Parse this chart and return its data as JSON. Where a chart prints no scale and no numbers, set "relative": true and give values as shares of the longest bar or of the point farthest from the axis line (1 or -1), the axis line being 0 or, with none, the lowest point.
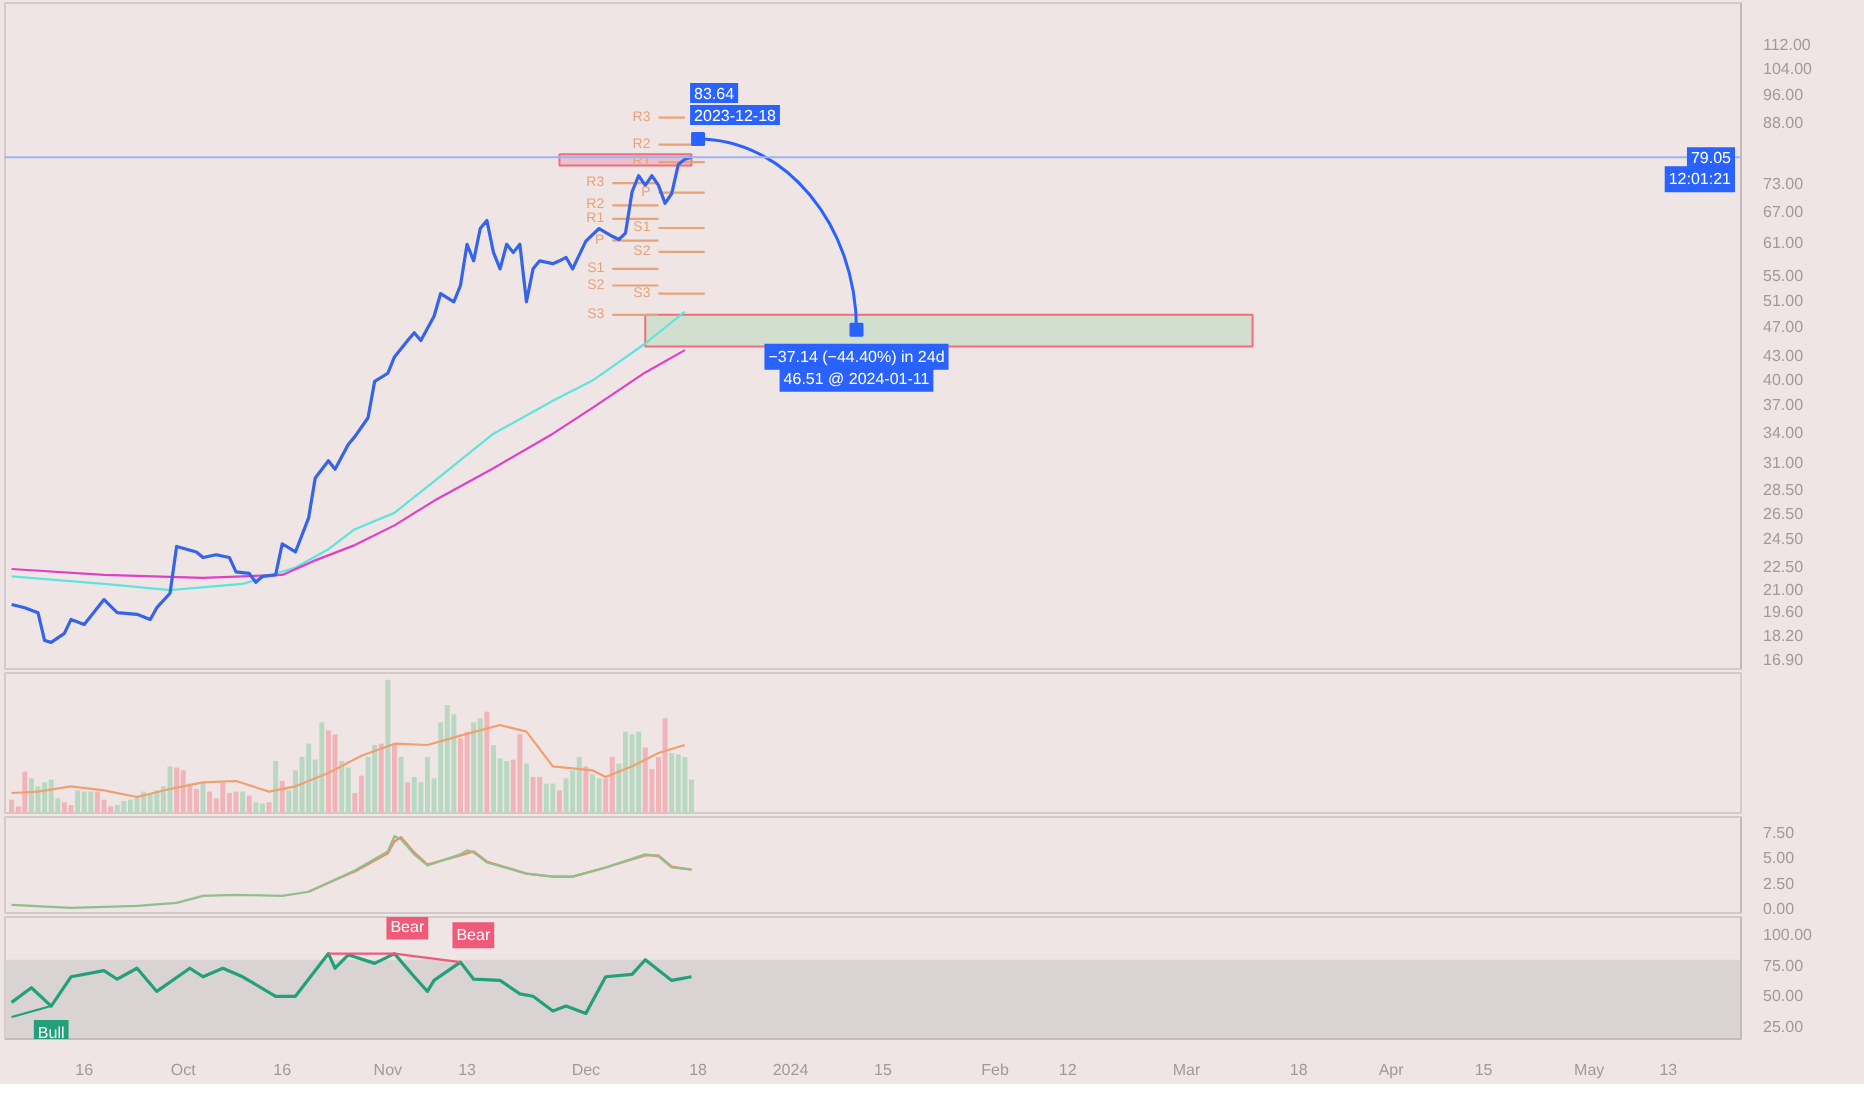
{
  "chart_data": [
    {
      "type": "line",
      "log": true,
      "xlim": [
        "2023-09-04",
        "2024-05-24"
      ],
      "ylim": [
        16.4,
        127
      ],
      "tick_labels": "y",
      "yticks": [
        {
          "value": 16.9,
          "label": "16.90"
        },
        {
          "value": 18.2,
          "label": "18.20"
        },
        {
          "value": 19.6,
          "label": "19.60"
        },
        {
          "value": 21,
          "label": "21.00"
        },
        {
          "value": 22.5,
          "label": "22.50"
        },
        {
          "value": 24.5,
          "label": "24.50"
        },
        {
          "value": 26.5,
          "label": "26.50"
        },
        {
          "value": 28.5,
          "label": "28.50"
        },
        {
          "value": 31,
          "label": "31.00"
        },
        {
          "value": 34,
          "label": "34.00"
        },
        {
          "value": 37,
          "label": "37.00"
        },
        {
          "value": 40,
          "label": "40.00"
        },
        {
          "value": 43,
          "label": "43.00"
        },
        {
          "value": 47,
          "label": "47.00"
        },
        {
          "value": 51,
          "label": "51.00"
        },
        {
          "value": 55,
          "label": "55.00"
        },
        {
          "value": 61,
          "label": "61.00"
        },
        {
          "value": 67,
          "label": "67.00"
        },
        {
          "value": 73,
          "label": "73.00"
        },
        {
          "value": 88,
          "label": "88.00"
        },
        {
          "value": 96,
          "label": "96.00"
        },
        {
          "value": 104,
          "label": "104.00"
        },
        {
          "value": 112,
          "label": "112.00"
        }
      ],
      "series": [
        {
          "type": "line",
          "color": "#c9dcc6",
          "x": [
            "2023-12-10",
            "2024-03-11"
          ],
          "values": [
            null,
            null
          ],
          "lower": [
            44.2,
            44.2
          ],
          "upper": [
            48.7,
            48.7
          ]
        },
        {
          "type": "line",
          "color": "#eab4c6",
          "x": [
            "2023-11-27",
            "2023-12-17"
          ],
          "values": [
            null,
            null
          ],
          "lower": [
            77.1,
            77.1
          ],
          "upper": [
            79.8,
            79.8
          ]
        },
        {
          "type": "line",
          "color": "#5fe3dd",
          "x": [
            "2023-09-05",
            "2023-09-19",
            "2023-09-29",
            "2023-10-10",
            "2023-10-18",
            "2023-10-23",
            "2023-10-27",
            "2023-11-02",
            "2023-11-08",
            "2023-11-17",
            "2023-11-26",
            "2023-12-02",
            "2023-12-10",
            "2023-12-16"
          ],
          "values": [
            21.8,
            21.3,
            20.9,
            21.3,
            22.4,
            23.7,
            25.2,
            26.5,
            29.2,
            33.8,
            37.4,
            39.8,
            44.6,
            49.2
          ]
        },
        {
          "type": "line",
          "color": "#e040c8",
          "x": [
            "2023-09-05",
            "2023-09-19",
            "2023-10-04",
            "2023-10-16",
            "2023-10-21",
            "2023-10-27",
            "2023-11-02",
            "2023-11-08",
            "2023-11-17",
            "2023-11-26",
            "2023-12-02",
            "2023-12-10",
            "2023-12-16"
          ],
          "values": [
            22.3,
            21.9,
            21.7,
            21.9,
            22.9,
            24.0,
            25.5,
            27.5,
            30.4,
            33.8,
            36.6,
            40.8,
            43.7
          ]
        },
        {
          "type": "line",
          "name": "R3",
          "color": "#e8a27a",
          "x": [
            "2023-12-05",
            "2023-12-12"
          ],
          "values": [
            73.0,
            73.0
          ]
        },
        {
          "type": "line",
          "name": "R2",
          "color": "#e8a27a",
          "x": [
            "2023-12-05",
            "2023-12-12"
          ],
          "values": [
            68.2,
            68.2
          ]
        },
        {
          "type": "line",
          "name": "R1",
          "color": "#e8a27a",
          "x": [
            "2023-12-05",
            "2023-12-12"
          ],
          "values": [
            65.4,
            65.4
          ]
        },
        {
          "type": "line",
          "name": "P",
          "color": "#e8a27a",
          "x": [
            "2023-12-05",
            "2023-12-12"
          ],
          "values": [
            61.2,
            61.2
          ]
        },
        {
          "type": "line",
          "name": "S1",
          "color": "#e8a27a",
          "x": [
            "2023-12-05",
            "2023-12-12"
          ],
          "values": [
            56.1,
            56.1
          ]
        },
        {
          "type": "line",
          "name": "S2",
          "color": "#e8a27a",
          "x": [
            "2023-12-05",
            "2023-12-12"
          ],
          "values": [
            53.3,
            53.3
          ]
        },
        {
          "type": "line",
          "name": "S3",
          "color": "#e8a27a",
          "x": [
            "2023-12-05",
            "2023-12-12"
          ],
          "values": [
            48.7,
            48.7
          ]
        },
        {
          "type": "line",
          "name": "R3",
          "color": "#e8a27a",
          "x": [
            "2023-12-12",
            "2023-12-16"
          ],
          "values": [
            89.3,
            89.3
          ]
        },
        {
          "type": "line",
          "name": "R2",
          "color": "#e8a27a",
          "x": [
            "2023-12-12",
            "2023-12-19"
          ],
          "values": [
            82.2,
            82.2
          ]
        },
        {
          "type": "line",
          "name": "R1",
          "color": "#e8a27a",
          "x": [
            "2023-12-12",
            "2023-12-19"
          ],
          "values": [
            77.9,
            77.9
          ]
        },
        {
          "type": "line",
          "name": "P",
          "color": "#e8a27a",
          "x": [
            "2023-12-12",
            "2023-12-19"
          ],
          "values": [
            70.9,
            70.9
          ]
        },
        {
          "type": "line",
          "name": "S1",
          "color": "#e8a27a",
          "x": [
            "2023-12-12",
            "2023-12-19"
          ],
          "values": [
            63.6,
            63.6
          ]
        },
        {
          "type": "line",
          "name": "S2",
          "color": "#e8a27a",
          "x": [
            "2023-12-12",
            "2023-12-19"
          ],
          "values": [
            59.1,
            59.1
          ]
        },
        {
          "type": "line",
          "name": "S3",
          "color": "#e8a27a",
          "x": [
            "2023-12-12",
            "2023-12-19"
          ],
          "values": [
            52.0,
            52.0
          ]
        },
        {
          "type": "line",
          "color": "#3563e9",
          "x": [
            "2023-09-05",
            "2023-09-07",
            "2023-09-09",
            "2023-09-10",
            "2023-09-11",
            "2023-09-13",
            "2023-09-14",
            "2023-09-16",
            "2023-09-19",
            "2023-09-21",
            "2023-09-24",
            "2023-09-26",
            "2023-09-27",
            "2023-09-29",
            "2023-09-30",
            "2023-10-03",
            "2023-10-04",
            "2023-10-06",
            "2023-10-08",
            "2023-10-09",
            "2023-10-11",
            "2023-10-12",
            "2023-10-13",
            "2023-10-15",
            "2023-10-16",
            "2023-10-18",
            "2023-10-20",
            "2023-10-21",
            "2023-10-23",
            "2023-10-24",
            "2023-10-26",
            "2023-10-27",
            "2023-10-29",
            "2023-10-30",
            "2023-11-01",
            "2023-11-02",
            "2023-11-04",
            "2023-11-05",
            "2023-11-06",
            "2023-11-08",
            "2023-11-09",
            "2023-11-11",
            "2023-11-12",
            "2023-11-13",
            "2023-11-14",
            "2023-11-15",
            "2023-11-16",
            "2023-11-17",
            "2023-11-18",
            "2023-11-19",
            "2023-11-20",
            "2023-11-21",
            "2023-11-22",
            "2023-11-23",
            "2023-11-24",
            "2023-11-26",
            "2023-11-27",
            "2023-11-28",
            "2023-11-29",
            "2023-12-01",
            "2023-12-03",
            "2023-12-05",
            "2023-12-06",
            "2023-12-07",
            "2023-12-08",
            "2023-12-09",
            "2023-12-10",
            "2023-12-11",
            "2023-12-12",
            "2023-12-13",
            "2023-12-14",
            "2023-12-15",
            "2023-12-16",
            "2023-12-17"
          ],
          "values": [
            20.0,
            19.8,
            19.5,
            17.9,
            17.8,
            18.3,
            19.1,
            18.8,
            20.3,
            19.5,
            19.4,
            19.1,
            19.8,
            20.7,
            23.9,
            23.5,
            23.1,
            23.3,
            23.1,
            22.1,
            22.0,
            21.4,
            21.8,
            21.9,
            24.1,
            23.5,
            26.1,
            29.5,
            31.1,
            30.3,
            32.7,
            33.5,
            35.5,
            39.7,
            40.7,
            42.8,
            45.0,
            46.1,
            45.0,
            48.5,
            52.0,
            50.7,
            53.3,
            60.5,
            57.5,
            63.5,
            65.1,
            59.0,
            56.1,
            60.5,
            59.0,
            60.5,
            50.7,
            56.1,
            57.5,
            57.0,
            57.5,
            58.1,
            56.1,
            61.1,
            63.5,
            62.0,
            61.4,
            62.6,
            71.1,
            74.7,
            72.5,
            74.7,
            72.5,
            68.6,
            70.7,
            77.3,
            78.6,
            79.05
          ]
        },
        {
          "type": "line",
          "marker": "square",
          "color": "#2962ff",
          "x": [
            "2023-12-18",
            "2024-01-11"
          ],
          "values": [
            83.64,
            46.51
          ]
        }
      ],
      "ref_lines": [
        {
          "axis": "y",
          "value": 79.05,
          "label": "79.05",
          "color": "#9db3f2"
        }
      ],
      "annotations": [
        {
          "text": "83.64",
          "x": "2023-12-18",
          "y": 83.64
        },
        {
          "text": "2023-12-18",
          "x": "2023-12-18",
          "y": 83.64
        },
        {
          "text": "−37.14 (−44.40%) in 24d",
          "x": "2024-01-11",
          "y": 46.51
        },
        {
          "text": "46.51 @ 2024-01-11",
          "x": "2024-01-11",
          "y": 46.51
        },
        "12:01:21"
      ]
    },
    {
      "type": "bar",
      "relative": true,
      "tick_labels": false,
      "xlim": [
        "2023-09-04",
        "2024-05-24"
      ],
      "x": [
        "2023-09-05",
        "2023-09-06",
        "2023-09-07",
        "2023-09-08",
        "2023-09-09",
        "2023-09-10",
        "2023-09-11",
        "2023-09-12",
        "2023-09-13",
        "2023-09-14",
        "2023-09-15",
        "2023-09-16",
        "2023-09-17",
        "2023-09-18",
        "2023-09-19",
        "2023-09-20",
        "2023-09-21",
        "2023-09-22",
        "2023-09-23",
        "2023-09-24",
        "2023-09-25",
        "2023-09-26",
        "2023-09-27",
        "2023-09-28",
        "2023-09-29",
        "2023-09-30",
        "2023-10-01",
        "2023-10-02",
        "2023-10-03",
        "2023-10-04",
        "2023-10-05",
        "2023-10-06",
        "2023-10-07",
        "2023-10-08",
        "2023-10-09",
        "2023-10-10",
        "2023-10-11",
        "2023-10-12",
        "2023-10-13",
        "2023-10-14",
        "2023-10-15",
        "2023-10-16",
        "2023-10-17",
        "2023-10-18",
        "2023-10-19",
        "2023-10-20",
        "2023-10-21",
        "2023-10-22",
        "2023-10-23",
        "2023-10-24",
        "2023-10-25",
        "2023-10-26",
        "2023-10-27",
        "2023-10-28",
        "2023-10-29",
        "2023-10-30",
        "2023-10-31",
        "2023-11-01",
        "2023-11-02",
        "2023-11-03",
        "2023-11-04",
        "2023-11-05",
        "2023-11-06",
        "2023-11-07",
        "2023-11-08",
        "2023-11-09",
        "2023-11-10",
        "2023-11-11",
        "2023-11-12",
        "2023-11-13",
        "2023-11-14",
        "2023-11-15",
        "2023-11-16",
        "2023-11-17",
        "2023-11-18",
        "2023-11-19",
        "2023-11-20",
        "2023-11-21",
        "2023-11-22",
        "2023-11-23",
        "2023-11-24",
        "2023-11-25",
        "2023-11-26",
        "2023-11-27",
        "2023-11-28",
        "2023-11-29",
        "2023-11-30",
        "2023-12-01",
        "2023-12-02",
        "2023-12-03",
        "2023-12-04",
        "2023-12-05",
        "2023-12-06",
        "2023-12-07",
        "2023-12-08",
        "2023-12-09",
        "2023-12-10",
        "2023-12-11",
        "2023-12-12",
        "2023-12-13",
        "2023-12-14",
        "2023-12-15",
        "2023-12-16",
        "2023-12-17"
      ],
      "series": [
        {
          "type": "bar",
          "values": [
            0.1,
            0.05,
            0.31,
            0.26,
            0.2,
            0.23,
            0.25,
            0.11,
            0.08,
            0.06,
            0.17,
            0.16,
            0.16,
            0.16,
            0.1,
            0.05,
            0.06,
            0.09,
            0.1,
            0.13,
            0.16,
            0.15,
            0.17,
            0.2,
            0.35,
            0.34,
            0.32,
            0.22,
            0.18,
            0.23,
            0.16,
            0.11,
            0.23,
            0.15,
            0.16,
            0.16,
            0.13,
            0.08,
            0.07,
            0.08,
            0.39,
            0.24,
            0.17,
            0.32,
            0.42,
            0.52,
            0.4,
            0.68,
            0.62,
            0.59,
            0.39,
            0.34,
            0.15,
            0.28,
            0.42,
            0.51,
            0.52,
            1,
            0.52,
            0.42,
            0.23,
            0.27,
            0.23,
            0.42,
            0.26,
            0.68,
            0.81,
            0.74,
            0.56,
            0.61,
            0.68,
            0.71,
            0.76,
            0.51,
            0.41,
            0.39,
            0.4,
            0.59,
            0.37,
            0.27,
            0.27,
            0.22,
            0.22,
            0.17,
            0.26,
            0.32,
            0.42,
            0.35,
            0.29,
            0.26,
            0.26,
            0.42,
            0.37,
            0.61,
            0.59,
            0.61,
            0.49,
            0.33,
            0.42,
            0.71,
            0.45,
            0.44,
            0.42,
            0.25
          ],
          "colors": [
            "#f1b4b8",
            "#f1b4b8",
            "#f1b4b8",
            "#b8d8c2",
            "#b8d8c2",
            "#b8d8c2",
            "#b8d8c2",
            "#b8d8c2",
            "#f1b4b8",
            "#f1b4b8",
            "#b8d8c2",
            "#b8d8c2",
            "#b8d8c2",
            "#f1b4b8",
            "#f1b4b8",
            "#f1b4b8",
            "#b8d8c2",
            "#b8d8c2",
            "#b8d8c2",
            "#b8d8c2",
            "#b8d8c2",
            "#b8d8c2",
            "#b8d8c2",
            "#b8d8c2",
            "#b8d8c2",
            "#f1b4b8",
            "#f1b4b8",
            "#f1b4b8",
            "#f1b4b8",
            "#b8d8c2",
            "#f1b4b8",
            "#f1b4b8",
            "#f1b4b8",
            "#f1b4b8",
            "#f1b4b8",
            "#b8d8c2",
            "#f1b4b8",
            "#b8d8c2",
            "#b8d8c2",
            "#f1b4b8",
            "#b8d8c2",
            "#f1b4b8",
            "#b8d8c2",
            "#b8d8c2",
            "#b8d8c2",
            "#b8d8c2",
            "#b8d8c2",
            "#b8d8c2",
            "#f1b4b8",
            "#f1b4b8",
            "#b8d8c2",
            "#b8d8c2",
            "#f1b4b8",
            "#f1b4b8",
            "#b8d8c2",
            "#b8d8c2",
            "#f1b4b8",
            "#b8d8c2",
            "#f1b4b8",
            "#b8d8c2",
            "#f1b4b8",
            "#b8d8c2",
            "#b8d8c2",
            "#b8d8c2",
            "#b8d8c2",
            "#b8d8c2",
            "#b8d8c2",
            "#b8d8c2",
            "#f1b4b8",
            "#f1b4b8",
            "#b8d8c2",
            "#b8d8c2",
            "#f1b4b8",
            "#b8d8c2",
            "#b8d8c2",
            "#b8d8c2",
            "#f1b4b8",
            "#f1b4b8",
            "#b8d8c2",
            "#f1b4b8",
            "#f1b4b8",
            "#b8d8c2",
            "#b8d8c2",
            "#f1b4b8",
            "#b8d8c2",
            "#b8d8c2",
            "#b8d8c2",
            "#f1b4b8",
            "#b8d8c2",
            "#b8d8c2",
            "#f1b4b8",
            "#f1b4b8",
            "#b8d8c2",
            "#b8d8c2",
            "#b8d8c2",
            "#b8d8c2",
            "#f1b4b8",
            "#f1b4b8",
            "#f1b4b8",
            "#f1b4b8",
            "#b8d8c2",
            "#b8d8c2",
            "#b8d8c2",
            "#b8d8c2"
          ]
        },
        {
          "type": "line",
          "color": "#f0a070",
          "x": [
            "2023-09-05",
            "2023-09-09",
            "2023-09-14",
            "2023-09-19",
            "2023-09-24",
            "2023-09-29",
            "2023-10-04",
            "2023-10-09",
            "2023-10-14",
            "2023-10-18",
            "2023-10-23",
            "2023-10-28",
            "2023-11-02",
            "2023-11-07",
            "2023-11-12",
            "2023-11-18",
            "2023-11-22",
            "2023-11-26",
            "2023-12-02",
            "2023-12-04",
            "2023-12-08",
            "2023-12-12",
            "2023-12-16"
          ],
          "values": [
            0.15,
            0.16,
            0.2,
            0.17,
            0.12,
            0.18,
            0.23,
            0.24,
            0.16,
            0.2,
            0.3,
            0.43,
            0.52,
            0.51,
            0.58,
            0.66,
            0.61,
            0.35,
            0.32,
            0.27,
            0.35,
            0.45,
            0.51
          ]
        }
      ]
    },
    {
      "type": "line",
      "tick_labels": "y",
      "xlim": [
        "2023-09-04",
        "2024-05-24"
      ],
      "ylim": [
        -0.5,
        9
      ],
      "yticks": [
        {
          "value": 0,
          "label": "0.00"
        },
        {
          "value": 2.5,
          "label": "2.50"
        },
        {
          "value": 5,
          "label": "5.00"
        },
        {
          "value": 7.5,
          "label": "7.50"
        }
      ],
      "series": [
        {
          "color": "#f08a6a",
          "x": [
            "2023-10-20",
            "2023-10-23",
            "2023-10-27",
            "2023-11-01",
            "2023-11-02",
            "2023-11-03",
            "2023-11-05",
            "2023-11-07",
            "2023-11-12",
            "2023-11-13",
            "2023-11-14",
            "2023-11-16",
            "2023-11-22",
            "2023-11-26",
            "2023-11-29",
            "2023-12-04",
            "2023-12-10",
            "2023-12-12",
            "2023-12-14",
            "2023-12-17"
          ],
          "values": [
            1.6,
            2.5,
            3.6,
            5.4,
            6.6,
            7.0,
            5.5,
            4.3,
            5.2,
            5.4,
            5.6,
            4.6,
            3.4,
            3.1,
            3.1,
            4.0,
            5.2,
            5.2,
            4.1,
            3.8
          ]
        },
        {
          "color": "#8fbf8f",
          "x": [
            "2023-09-05",
            "2023-09-14",
            "2023-09-24",
            "2023-09-30",
            "2023-10-04",
            "2023-10-09",
            "2023-10-16",
            "2023-10-20",
            "2023-10-23",
            "2023-10-27",
            "2023-11-01",
            "2023-11-02",
            "2023-11-03",
            "2023-11-05",
            "2023-11-07",
            "2023-11-12",
            "2023-11-13",
            "2023-11-14",
            "2023-11-16",
            "2023-11-22",
            "2023-11-26",
            "2023-11-29",
            "2023-12-04",
            "2023-12-10",
            "2023-12-12",
            "2023-12-14",
            "2023-12-17"
          ],
          "values": [
            0.3,
            0.0,
            0.2,
            0.5,
            1.2,
            1.3,
            1.2,
            1.6,
            2.5,
            3.7,
            5.6,
            7.1,
            6.8,
            5.3,
            4.2,
            5.3,
            5.7,
            5.5,
            4.5,
            3.4,
            3.1,
            3.1,
            4.0,
            5.3,
            5.1,
            4.0,
            3.8
          ]
        }
      ]
    },
    {
      "type": "line",
      "xlim": [
        "2023-09-04",
        "2024-05-24"
      ],
      "ylim": [
        14,
        114
      ],
      "yticks": [
        {
          "value": 25,
          "label": "25.00"
        },
        {
          "value": 50,
          "label": "50.00"
        },
        {
          "value": 75,
          "label": "75.00"
        },
        {
          "value": 100,
          "label": "100.00"
        }
      ],
      "xticks": [
        {
          "value": "2023-09-16",
          "label": "16"
        },
        {
          "value": "2023-10-01",
          "label": "Oct"
        },
        {
          "value": "2023-10-16",
          "label": "16"
        },
        {
          "value": "2023-11-01",
          "label": "Nov"
        },
        {
          "value": "2023-11-13",
          "label": "13"
        },
        {
          "value": "2023-12-01",
          "label": "Dec"
        },
        {
          "value": "2023-12-18",
          "label": "18"
        },
        {
          "value": "2024-01-01",
          "label": "2024"
        },
        {
          "value": "2024-01-15",
          "label": "15"
        },
        {
          "value": "2024-02-01",
          "label": "Feb"
        },
        {
          "value": "2024-02-12",
          "label": "12"
        },
        {
          "value": "2024-03-01",
          "label": "Mar"
        },
        {
          "value": "2024-03-18",
          "label": "18"
        },
        {
          "value": "2024-04-01",
          "label": "Apr"
        },
        {
          "value": "2024-04-15",
          "label": "15"
        },
        {
          "value": "2024-05-01",
          "label": "May"
        },
        {
          "value": "2024-05-13",
          "label": "13"
        }
      ],
      "bands": [
        {
          "axis": "y",
          "from": 14,
          "to": 79,
          "color": "#d6d0d1"
        }
      ],
      "series": [
        {
          "color": "#22a07a",
          "x": [
            "2023-09-05",
            "2023-09-08",
            "2023-09-11",
            "2023-09-14",
            "2023-09-19",
            "2023-09-21",
            "2023-09-24",
            "2023-09-27",
            "2023-10-02",
            "2023-10-04",
            "2023-10-07",
            "2023-10-10",
            "2023-10-15",
            "2023-10-18",
            "2023-10-23",
            "2023-10-24",
            "2023-10-26",
            "2023-10-30",
            "2023-11-02",
            "2023-11-05",
            "2023-11-07",
            "2023-11-08",
            "2023-11-12",
            "2023-11-14",
            "2023-11-18",
            "2023-11-21",
            "2023-11-23",
            "2023-11-26",
            "2023-11-28",
            "2023-12-01",
            "2023-12-04",
            "2023-12-08",
            "2023-12-10",
            "2023-12-14",
            "2023-12-17"
          ],
          "values": [
            44,
            56,
            41,
            65,
            70,
            63,
            72,
            53,
            72,
            65,
            72,
            65,
            49,
            49,
            84,
            72,
            83,
            76,
            84,
            65,
            53,
            62,
            77,
            63,
            62,
            51,
            49,
            37,
            41,
            35,
            65,
            67,
            79,
            62,
            65
          ]
        },
        {
          "color": "#22a07a",
          "x": [
            "2023-09-05",
            "2023-09-11"
          ],
          "values": [
            32,
            41
          ]
        },
        {
          "color": "#f05a78",
          "x": [
            "2023-10-23",
            "2023-11-02",
            "2023-11-12"
          ],
          "values": [
            84,
            84,
            77
          ]
        }
      ],
      "annotations": [
        {
          "text": "Bull",
          "x": "2023-09-11",
          "y": 41
        },
        {
          "text": "Bear",
          "x": "2023-11-02",
          "y": 84
        },
        {
          "text": "Bear",
          "x": "2023-11-12",
          "y": 77
        }
      ]
    }
  ]
}
